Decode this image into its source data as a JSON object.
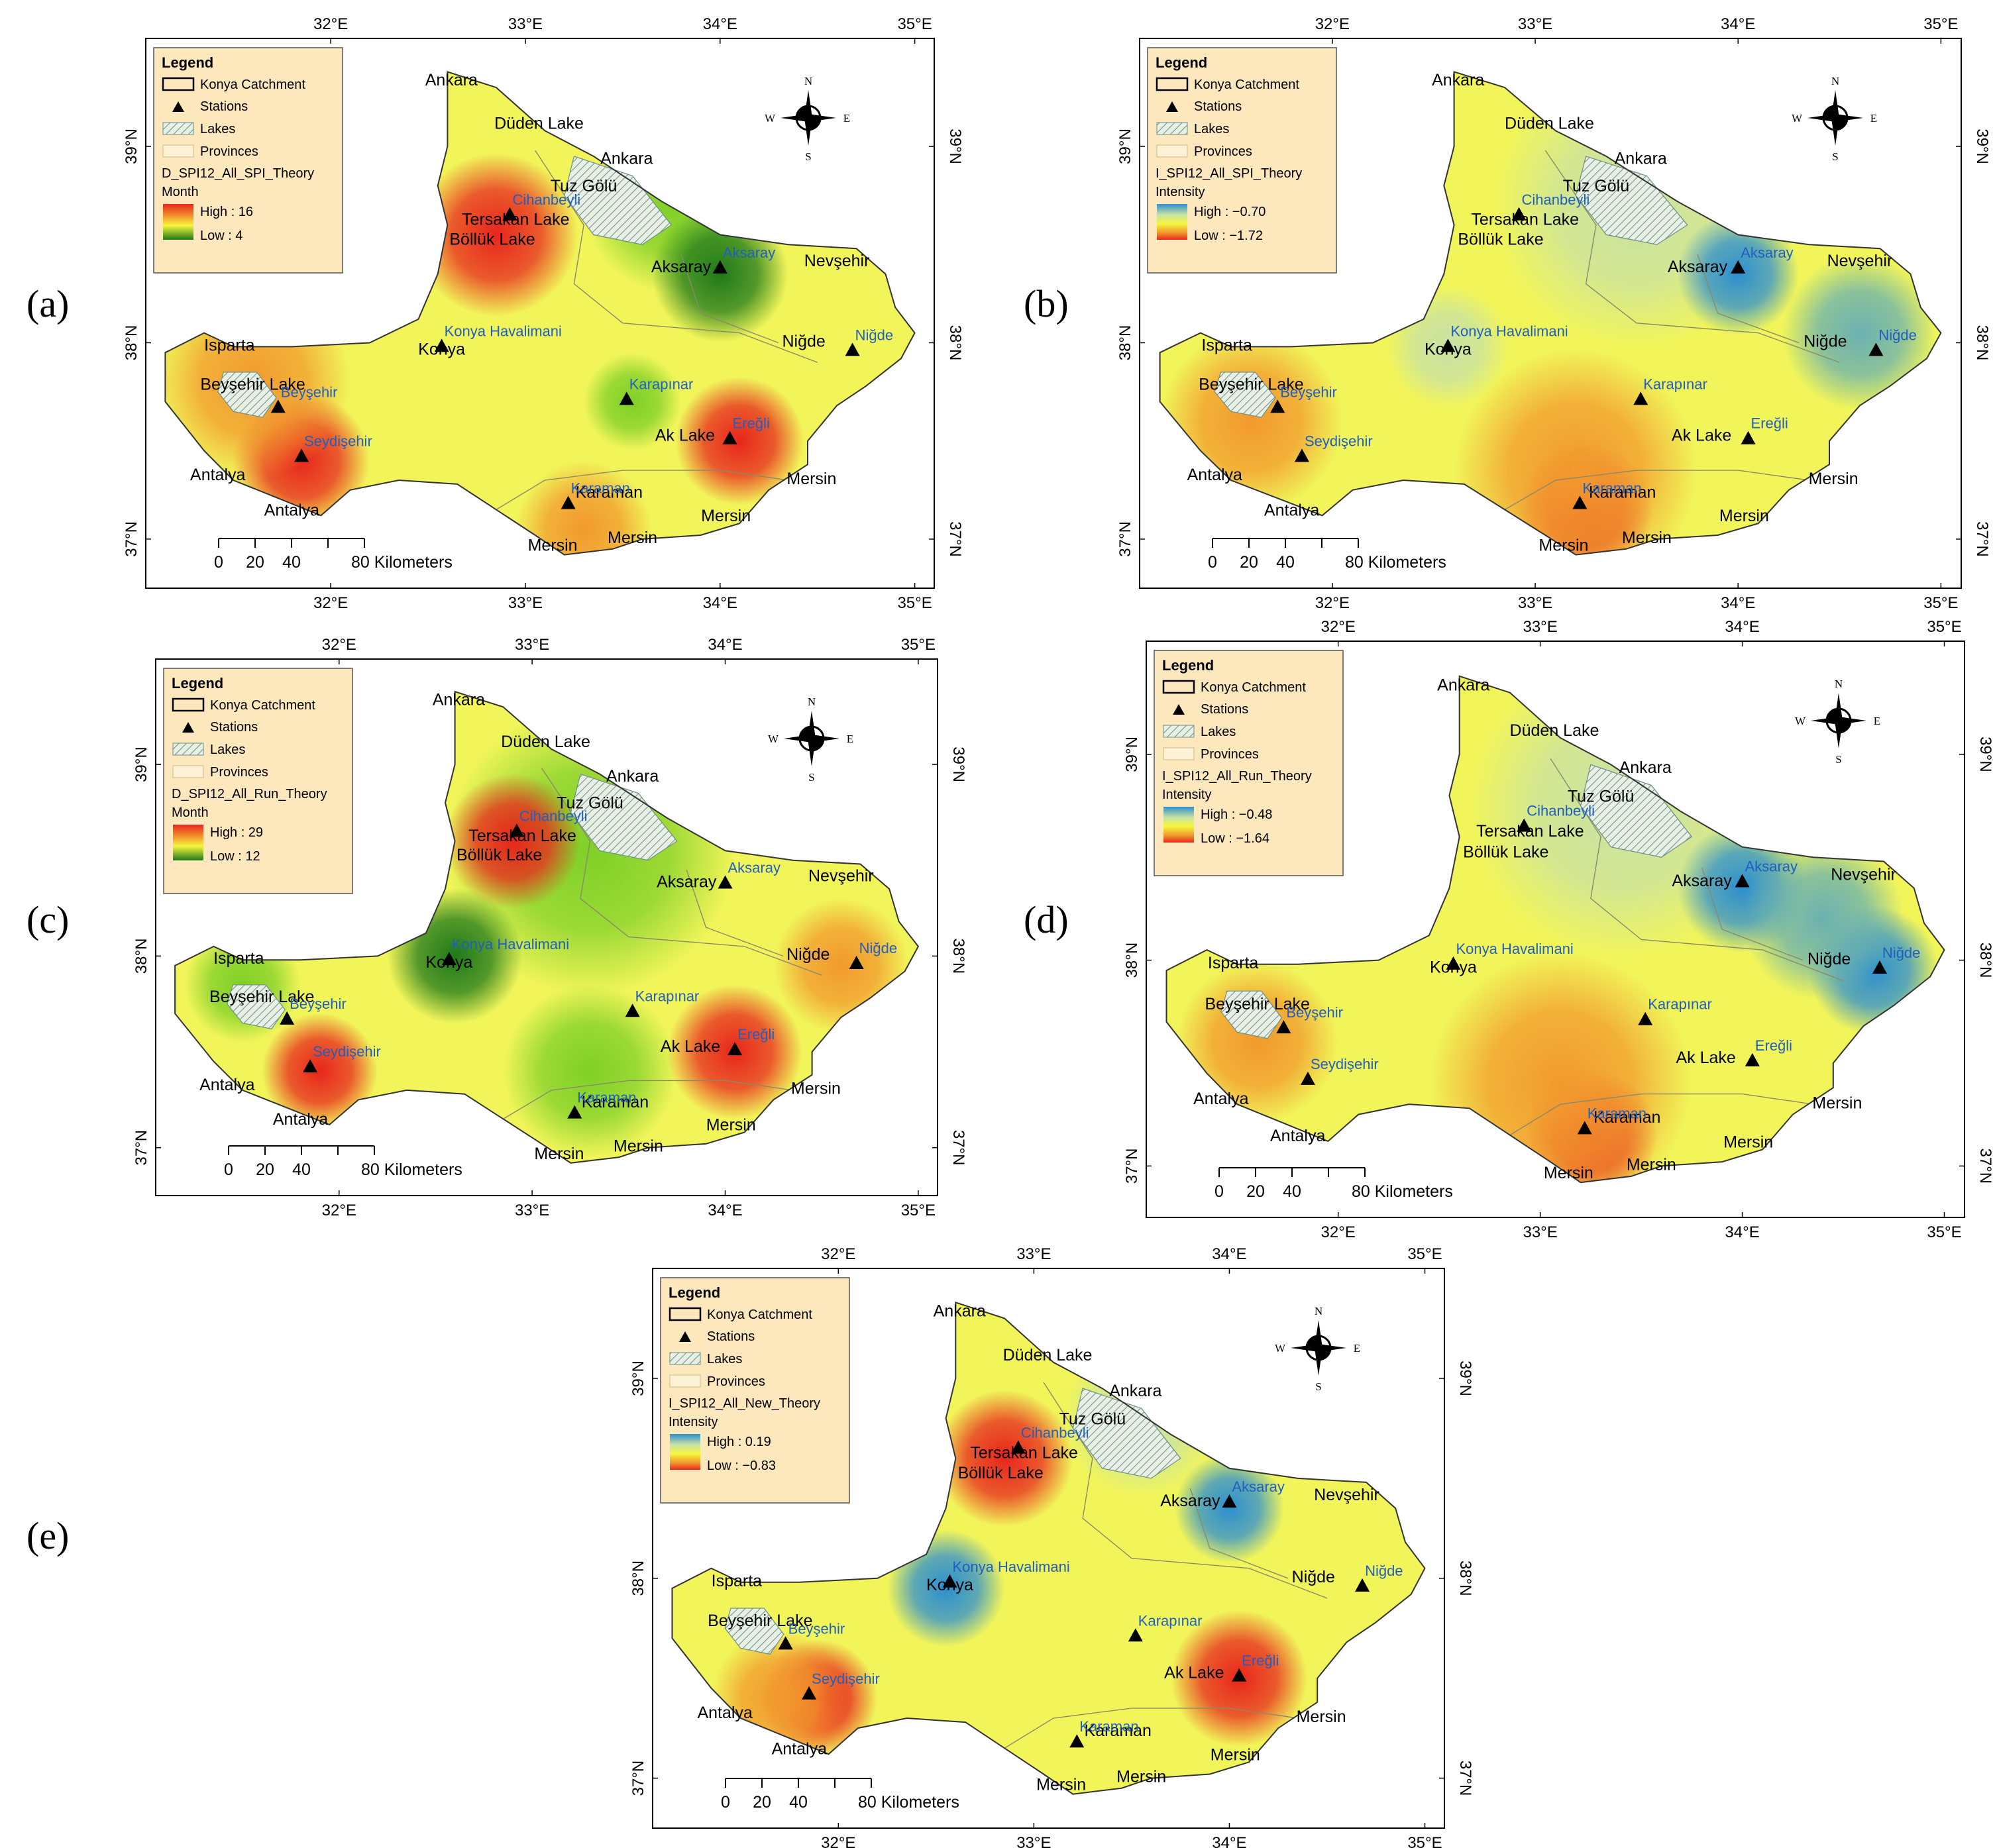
{
  "legend_items": {
    "title": "Legend",
    "catchment": "Konya Catchment",
    "stations": "Stations",
    "lakes": "Lakes",
    "provinces": "Provinces"
  },
  "scale_bar": {
    "ticks": [
      "0",
      "20",
      "40"
    ],
    "end_label": "80 Kilometers"
  },
  "compass": {
    "n": "N",
    "s": "S",
    "e": "E",
    "w": "W"
  },
  "lon_ticks": [
    "32°E",
    "33°E",
    "34°E",
    "35°E"
  ],
  "lat_ticks": [
    "39°N",
    "38°N",
    "37°N"
  ],
  "colors": {
    "land_base": "#f1f55a",
    "frame": "#000000",
    "legend_bg": "#fde7bd",
    "red": "#e8261c",
    "orange": "#f29a2e",
    "yellow": "#f6f63c",
    "green_light": "#7fd028",
    "green_dark": "#1f7a1a",
    "blue": "#2d8fd0",
    "teal": "#6ab1b0",
    "pale_blue_green": "#c9e2a4",
    "station_label": "#1f5fbf"
  },
  "place_labels": [
    {
      "text": "Ankara",
      "lon": 32.62,
      "lat": 39.31
    },
    {
      "text": "Düden Lake",
      "lon": 33.07,
      "lat": 39.09
    },
    {
      "text": "Ankara",
      "lon": 33.52,
      "lat": 38.91
    },
    {
      "text": "Tuz Gölü",
      "lon": 33.3,
      "lat": 38.77
    },
    {
      "text": "Tersakan Lake",
      "lon": 32.95,
      "lat": 38.6
    },
    {
      "text": "Böllük Lake",
      "lon": 32.83,
      "lat": 38.5
    },
    {
      "text": "Aksaray",
      "lon": 33.8,
      "lat": 38.36
    },
    {
      "text": "Nevşehir",
      "lon": 34.6,
      "lat": 38.39
    },
    {
      "text": "Konya",
      "lon": 32.57,
      "lat": 37.94
    },
    {
      "text": "Isparta",
      "lon": 31.48,
      "lat": 37.96
    },
    {
      "text": "Beyşehir Lake",
      "lon": 31.6,
      "lat": 37.76
    },
    {
      "text": "Niğde",
      "lon": 34.43,
      "lat": 37.98
    },
    {
      "text": "Ak Lake",
      "lon": 33.82,
      "lat": 37.5
    },
    {
      "text": "Karaman",
      "lon": 33.43,
      "lat": 37.21
    },
    {
      "text": "Antalya",
      "lon": 31.42,
      "lat": 37.3
    },
    {
      "text": "Antalya",
      "lon": 31.8,
      "lat": 37.12
    },
    {
      "text": "Mersin",
      "lon": 34.47,
      "lat": 37.28
    },
    {
      "text": "Mersin",
      "lon": 34.03,
      "lat": 37.09
    },
    {
      "text": "Mersin",
      "lon": 33.55,
      "lat": 36.98
    },
    {
      "text": "Mersin",
      "lon": 33.14,
      "lat": 36.94
    }
  ],
  "stations": [
    {
      "name": "Cihanbeyli",
      "lon": 32.92,
      "lat": 38.65
    },
    {
      "name": "Aksaray",
      "lon": 34.0,
      "lat": 38.38
    },
    {
      "name": "Konya Havalimani",
      "lon": 32.57,
      "lat": 37.98
    },
    {
      "name": "Niğde",
      "lon": 34.68,
      "lat": 37.96
    },
    {
      "name": "Karapınar",
      "lon": 33.52,
      "lat": 37.71
    },
    {
      "name": "Beyşehir",
      "lon": 31.73,
      "lat": 37.67
    },
    {
      "name": "Ereğli",
      "lon": 34.05,
      "lat": 37.51
    },
    {
      "name": "Seydişehir",
      "lon": 31.85,
      "lat": 37.42
    },
    {
      "name": "Karaman",
      "lon": 33.22,
      "lat": 37.18
    }
  ],
  "panels": [
    {
      "label": "(a)",
      "id": "a",
      "legend_layer": "D_SPI12_All_SPI_Theory",
      "legend_var": "Month",
      "high": "High : 16",
      "low": "Low : 4",
      "scheme": "drg",
      "blobs": [
        {
          "lon": 32.85,
          "lat": 38.55,
          "r": 0.42,
          "c": "red"
        },
        {
          "lon": 31.85,
          "lat": 37.4,
          "r": 0.35,
          "c": "red"
        },
        {
          "lon": 34.1,
          "lat": 37.5,
          "r": 0.33,
          "c": "red"
        },
        {
          "lon": 31.6,
          "lat": 37.8,
          "r": 0.5,
          "c": "orange"
        },
        {
          "lon": 33.75,
          "lat": 38.7,
          "r": 0.45,
          "c": "green_light"
        },
        {
          "lon": 34.0,
          "lat": 38.35,
          "r": 0.35,
          "c": "green_dark"
        },
        {
          "lon": 33.55,
          "lat": 37.7,
          "r": 0.25,
          "c": "green_light"
        },
        {
          "lon": 33.3,
          "lat": 37.05,
          "r": 0.35,
          "c": "orange"
        }
      ]
    },
    {
      "label": "(b)",
      "id": "b",
      "legend_layer": "I_SPI12_All_SPI_Theory",
      "legend_var": "Intensity",
      "high": "High : −0.70",
      "low": "Low : −1.72",
      "scheme": "bgyr",
      "blobs": [
        {
          "lon": 33.5,
          "lat": 38.7,
          "r": 0.7,
          "c": "pale_blue_green"
        },
        {
          "lon": 34.0,
          "lat": 38.35,
          "r": 0.3,
          "c": "blue"
        },
        {
          "lon": 34.6,
          "lat": 38.05,
          "r": 0.38,
          "c": "teal"
        },
        {
          "lon": 32.57,
          "lat": 37.98,
          "r": 0.3,
          "c": "pale_blue_green"
        },
        {
          "lon": 33.25,
          "lat": 37.15,
          "r": 0.33,
          "c": "red"
        },
        {
          "lon": 33.2,
          "lat": 37.35,
          "r": 0.6,
          "c": "orange"
        },
        {
          "lon": 31.6,
          "lat": 37.6,
          "r": 0.45,
          "c": "orange"
        }
      ]
    },
    {
      "label": "(c)",
      "id": "c",
      "legend_layer": "D_SPI12_All_Run_Theory",
      "legend_var": "Month",
      "high": "High : 29",
      "low": "Low : 12",
      "scheme": "drg",
      "blobs": [
        {
          "lon": 33.3,
          "lat": 38.55,
          "r": 0.75,
          "c": "green_light"
        },
        {
          "lon": 32.6,
          "lat": 38.0,
          "r": 0.35,
          "c": "green_dark"
        },
        {
          "lon": 33.3,
          "lat": 37.4,
          "r": 0.45,
          "c": "green_light"
        },
        {
          "lon": 32.9,
          "lat": 38.6,
          "r": 0.35,
          "c": "red"
        },
        {
          "lon": 34.05,
          "lat": 37.5,
          "r": 0.35,
          "c": "red"
        },
        {
          "lon": 31.9,
          "lat": 37.4,
          "r": 0.3,
          "c": "red"
        },
        {
          "lon": 34.6,
          "lat": 37.95,
          "r": 0.35,
          "c": "orange"
        },
        {
          "lon": 31.5,
          "lat": 37.85,
          "r": 0.3,
          "c": "green_light"
        }
      ]
    },
    {
      "label": "(d)",
      "id": "d",
      "legend_layer": "I_SPI12_All_Run_Theory",
      "legend_var": "Intensity",
      "high": "High : −0.48",
      "low": "Low : −1.64",
      "scheme": "bgyr",
      "blobs": [
        {
          "lon": 33.4,
          "lat": 38.75,
          "r": 0.75,
          "c": "pale_blue_green"
        },
        {
          "lon": 34.0,
          "lat": 38.35,
          "r": 0.32,
          "c": "blue"
        },
        {
          "lon": 34.65,
          "lat": 37.95,
          "r": 0.32,
          "c": "blue"
        },
        {
          "lon": 34.4,
          "lat": 38.2,
          "r": 0.4,
          "c": "teal"
        },
        {
          "lon": 33.25,
          "lat": 37.15,
          "r": 0.33,
          "c": "red"
        },
        {
          "lon": 33.1,
          "lat": 37.4,
          "r": 0.65,
          "c": "orange"
        },
        {
          "lon": 31.6,
          "lat": 37.6,
          "r": 0.4,
          "c": "orange"
        }
      ]
    },
    {
      "label": "(e)",
      "id": "e",
      "legend_layer": "I_SPI12_All_New_Theory",
      "legend_var": "Intensity",
      "high": "High : 0.19",
      "low": "Low : −0.83",
      "scheme": "bgyr",
      "blobs": [
        {
          "lon": 32.85,
          "lat": 38.6,
          "r": 0.35,
          "c": "red"
        },
        {
          "lon": 31.9,
          "lat": 37.4,
          "r": 0.3,
          "c": "red"
        },
        {
          "lon": 34.05,
          "lat": 37.5,
          "r": 0.35,
          "c": "red"
        },
        {
          "lon": 31.7,
          "lat": 37.4,
          "r": 0.35,
          "c": "orange"
        },
        {
          "lon": 32.55,
          "lat": 37.95,
          "r": 0.3,
          "c": "blue"
        },
        {
          "lon": 34.0,
          "lat": 38.35,
          "r": 0.28,
          "c": "blue"
        },
        {
          "lon": 33.55,
          "lat": 38.8,
          "r": 0.4,
          "c": "pale_blue_green"
        }
      ]
    }
  ]
}
